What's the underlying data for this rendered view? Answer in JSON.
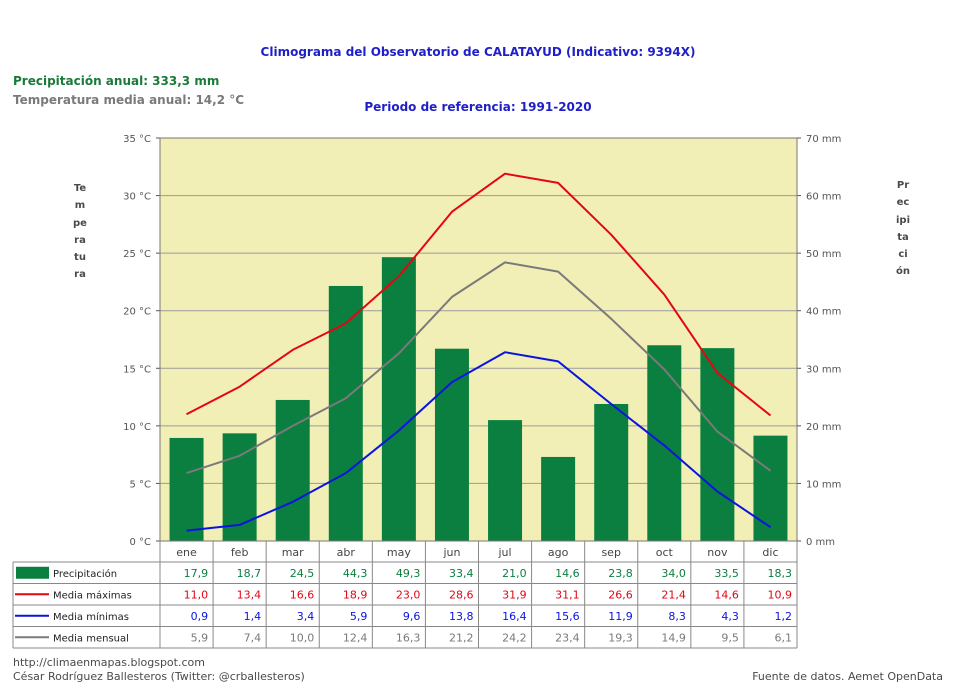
{
  "header": {
    "title": "Climograma del Observatorio de CALATAYUD (Indicativo: 9394X)",
    "subtitle": "Periodo de referencia: 1991-2020",
    "annual_precip": "Precipitación anual: 333,3 mm",
    "annual_temp": "Temperatura media anual: 14,2 °C"
  },
  "axis_labels": {
    "left": "Temperatura",
    "right": "Precipitación"
  },
  "footer": {
    "blog": "http://climaenmapas.blogspot.com",
    "author": "César Rodríguez Ballesteros (Twitter: @crballesteros)",
    "source": "Fuente de datos. Aemet OpenData"
  },
  "colors": {
    "plot_bg": "#f2efb6",
    "precip": "#0b7f3f",
    "max": "#e30613",
    "min": "#0a14e0",
    "mean": "#7a7a7a",
    "grid": "#9a9a9a"
  },
  "chart_data": {
    "type": "bar",
    "categories": [
      "ene",
      "feb",
      "mar",
      "abr",
      "may",
      "jun",
      "jul",
      "ago",
      "sep",
      "oct",
      "nov",
      "dic"
    ],
    "y_left": {
      "unit": "°C",
      "ylim": [
        0,
        35
      ],
      "ticks": [
        "0 °C",
        "5 °C",
        "10 °C",
        "15 °C",
        "20 °C",
        "25 °C",
        "30 °C",
        "35 °C"
      ]
    },
    "y_right": {
      "unit": "mm",
      "ylim": [
        0,
        70
      ],
      "ticks": [
        "0 mm",
        "10 mm",
        "20 mm",
        "30 mm",
        "40 mm",
        "50 mm",
        "60 mm",
        "70 mm"
      ]
    },
    "grid": true,
    "series": [
      {
        "name": "Precipitación",
        "kind": "bar",
        "axis": "right",
        "color": "#0b7f3f",
        "values": [
          17.9,
          18.7,
          24.5,
          44.3,
          49.3,
          33.4,
          21.0,
          14.6,
          23.8,
          34.0,
          33.5,
          18.3
        ],
        "labels": [
          "17,9",
          "18,7",
          "24,5",
          "44,3",
          "49,3",
          "33,4",
          "21,0",
          "14,6",
          "23,8",
          "34,0",
          "33,5",
          "18,3"
        ]
      },
      {
        "name": "Media máximas",
        "kind": "line",
        "axis": "left",
        "color": "#e30613",
        "values": [
          11.0,
          13.4,
          16.6,
          18.9,
          23.0,
          28.6,
          31.9,
          31.1,
          26.6,
          21.4,
          14.6,
          10.9
        ],
        "labels": [
          "11,0",
          "13,4",
          "16,6",
          "18,9",
          "23,0",
          "28,6",
          "31,9",
          "31,1",
          "26,6",
          "21,4",
          "14,6",
          "10,9"
        ]
      },
      {
        "name": "Media mínimas",
        "kind": "line",
        "axis": "left",
        "color": "#0a14e0",
        "values": [
          0.9,
          1.4,
          3.4,
          5.9,
          9.6,
          13.8,
          16.4,
          15.6,
          11.9,
          8.3,
          4.3,
          1.2
        ],
        "labels": [
          "0,9",
          "1,4",
          "3,4",
          "5,9",
          "9,6",
          "13,8",
          "16,4",
          "15,6",
          "11,9",
          "8,3",
          "4,3",
          "1,2"
        ]
      },
      {
        "name": "Media mensual",
        "kind": "line",
        "axis": "left",
        "color": "#7a7a7a",
        "values": [
          5.9,
          7.4,
          10.0,
          12.4,
          16.3,
          21.2,
          24.2,
          23.4,
          19.3,
          14.9,
          9.5,
          6.1
        ],
        "labels": [
          "5,9",
          "7,4",
          "10,0",
          "12,4",
          "16,3",
          "21,2",
          "24,2",
          "23,4",
          "19,3",
          "14,9",
          "9,5",
          "6,1"
        ]
      }
    ]
  }
}
